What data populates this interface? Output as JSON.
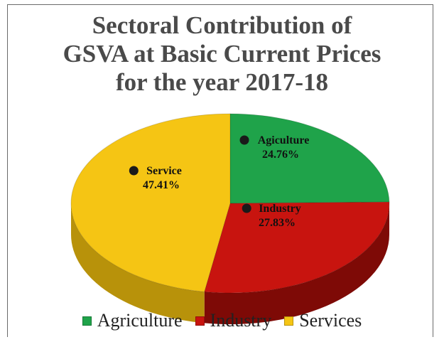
{
  "chart_data": {
    "type": "pie",
    "title_lines": [
      "Sectoral Contribution of",
      "GSVA at Basic Current Prices",
      "for the year 2017-18"
    ],
    "slices": [
      {
        "label": "Agiculture",
        "legend": "Agriculture",
        "value": 24.76,
        "value_text": "24.76%",
        "color": "#1fa34a",
        "side": "#137a34"
      },
      {
        "label": "Industry",
        "legend": "Industry",
        "value": 27.83,
        "value_text": "27.83%",
        "color": "#c8140f",
        "side": "#7e0a06"
      },
      {
        "label": "Service",
        "legend": "Services",
        "value": 47.41,
        "value_text": "47.41%",
        "color": "#f5c514",
        "side": "#b8920a"
      }
    ],
    "legend_placement": "bottom"
  }
}
